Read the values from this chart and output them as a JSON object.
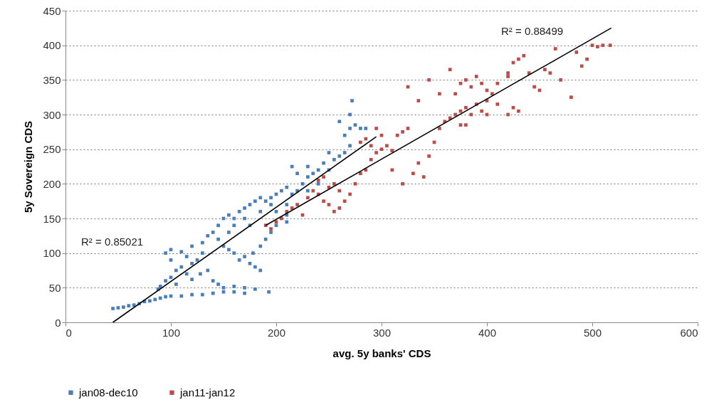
{
  "chart_data": {
    "type": "scatter",
    "xlabel": "avg. 5y banks' CDS",
    "ylabel": "5y Sovereign CDS",
    "xlim": [
      0,
      600
    ],
    "xticks": [
      0,
      100,
      200,
      300,
      400,
      500,
      600
    ],
    "ylim": [
      0,
      450
    ],
    "yticks": [
      0,
      50,
      100,
      150,
      200,
      250,
      300,
      350,
      400,
      450
    ],
    "grid": "y",
    "legend": "bottom",
    "marker": "square",
    "annotations": [
      "R² = 0.85021",
      "R² = 0.88499"
    ],
    "series": [
      {
        "name": "jan08-dec10",
        "color": "#4a7ebb",
        "x": [
          45,
          50,
          55,
          60,
          65,
          70,
          75,
          80,
          85,
          90,
          95,
          100,
          110,
          120,
          130,
          140,
          150,
          160,
          170,
          193,
          90,
          95,
          100,
          105,
          110,
          100,
          95,
          100,
          110,
          115,
          120,
          125,
          130,
          120,
          130,
          135,
          140,
          145,
          150,
          155,
          160,
          145,
          150,
          155,
          160,
          165,
          170,
          175,
          180,
          185,
          178,
          128,
          135,
          140,
          145,
          150,
          160,
          170,
          180,
          120,
          115,
          105,
          88,
          165,
          170,
          175,
          180,
          185,
          190,
          195,
          200,
          205,
          210,
          195,
          185,
          200,
          210,
          215,
          220,
          225,
          230,
          235,
          240,
          220,
          215,
          230,
          250,
          245,
          255,
          260,
          265,
          270,
          265,
          270,
          275,
          280,
          285,
          260,
          270,
          272,
          250,
          240,
          230,
          210,
          200,
          195,
          190,
          185,
          175,
          170,
          160,
          155,
          210
        ],
        "values": [
          20,
          21,
          22,
          24,
          25,
          27,
          30,
          31,
          33,
          35,
          37,
          38,
          38,
          40,
          40,
          42,
          44,
          44,
          42,
          44,
          52,
          60,
          65,
          75,
          80,
          90,
          100,
          105,
          102,
          95,
          85,
          90,
          100,
          110,
          115,
          125,
          130,
          140,
          150,
          155,
          150,
          120,
          110,
          105,
          100,
          90,
          95,
          85,
          80,
          75,
          100,
          70,
          75,
          60,
          55,
          50,
          52,
          50,
          48,
          62,
          70,
          55,
          48,
          160,
          165,
          170,
          175,
          180,
          175,
          180,
          185,
          190,
          195,
          170,
          160,
          160,
          170,
          185,
          190,
          200,
          210,
          215,
          220,
          215,
          225,
          225,
          220,
          230,
          235,
          240,
          245,
          255,
          270,
          280,
          285,
          280,
          280,
          290,
          300,
          320,
          245,
          200,
          190,
          155,
          140,
          130,
          120,
          110,
          140,
          150,
          140,
          130,
          145
        ]
      },
      {
        "name": "jan11-jan12",
        "color": "#be4b48",
        "x": [
          190,
          195,
          200,
          205,
          210,
          215,
          220,
          225,
          230,
          235,
          240,
          245,
          250,
          255,
          260,
          265,
          260,
          255,
          250,
          245,
          240,
          270,
          275,
          280,
          285,
          290,
          295,
          300,
          305,
          310,
          315,
          320,
          325,
          300,
          290,
          285,
          295,
          280,
          310,
          320,
          330,
          335,
          340,
          345,
          350,
          355,
          360,
          365,
          370,
          375,
          380,
          385,
          390,
          395,
          400,
          405,
          410,
          420,
          425,
          430,
          375,
          380,
          370,
          375,
          380,
          385,
          390,
          395,
          400,
          410,
          420,
          425,
          430,
          440,
          445,
          450,
          455,
          460,
          470,
          480,
          490,
          495,
          500,
          505,
          510,
          517,
          485,
          465,
          435,
          420,
          345,
          335,
          325,
          355,
          365,
          400
        ],
        "values": [
          140,
          135,
          145,
          150,
          160,
          165,
          170,
          155,
          180,
          190,
          185,
          175,
          170,
          160,
          165,
          175,
          190,
          200,
          195,
          210,
          205,
          185,
          200,
          215,
          220,
          235,
          245,
          250,
          255,
          248,
          270,
          275,
          280,
          270,
          255,
          265,
          280,
          260,
          220,
          200,
          215,
          230,
          210,
          240,
          260,
          280,
          290,
          295,
          300,
          305,
          310,
          300,
          315,
          305,
          320,
          330,
          315,
          300,
          310,
          305,
          285,
          285,
          330,
          345,
          350,
          340,
          355,
          345,
          335,
          345,
          360,
          375,
          380,
          360,
          340,
          335,
          365,
          360,
          350,
          325,
          370,
          380,
          400,
          398,
          400,
          400,
          390,
          395,
          385,
          355,
          350,
          320,
          340,
          330,
          365,
          300
        ]
      },
      {
        "type": "line",
        "marker": "none",
        "color": "#000000",
        "x": [
          45,
          295
        ],
        "values": [
          0,
          268
        ]
      },
      {
        "type": "line",
        "marker": "none",
        "color": "#000000",
        "x": [
          190,
          518
        ],
        "values": [
          140,
          425
        ]
      }
    ]
  }
}
